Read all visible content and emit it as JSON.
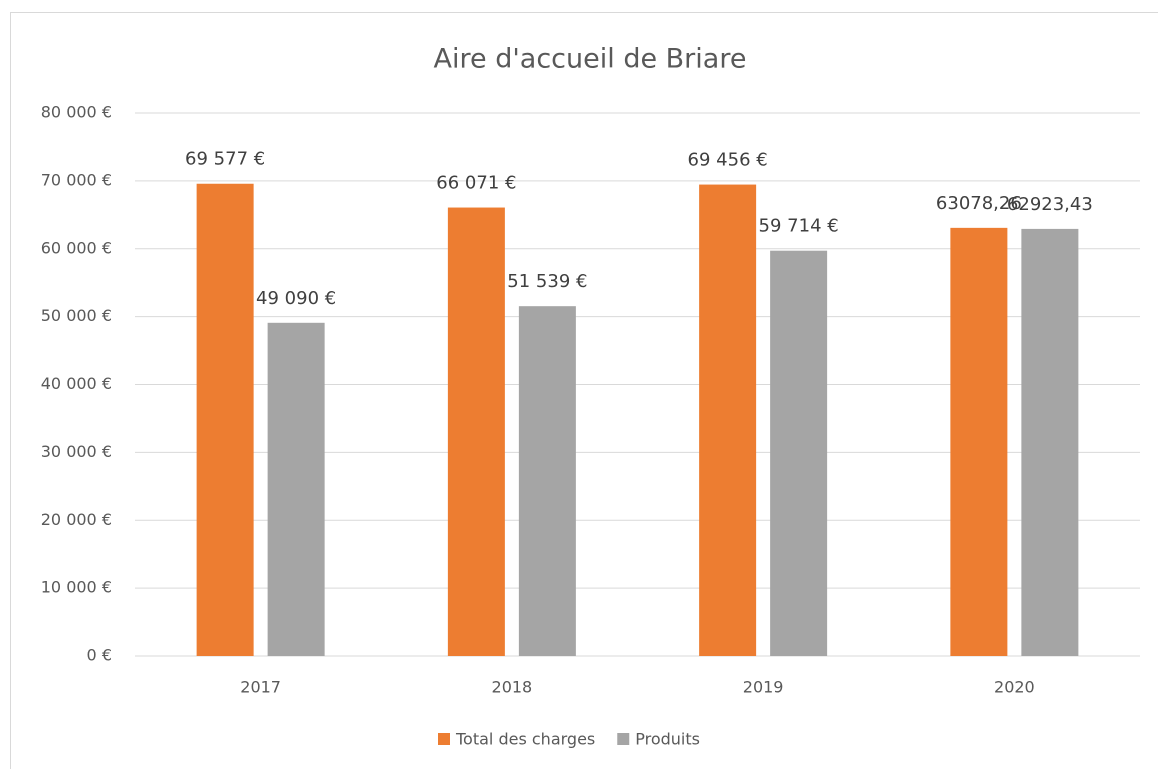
{
  "chart_data": {
    "type": "bar",
    "title": "Aire d'accueil de Briare",
    "categories": [
      "2017",
      "2018",
      "2019",
      "2020"
    ],
    "series": [
      {
        "name": "Total des charges",
        "color": "#ed7d31",
        "values": [
          69577,
          66071,
          69456,
          63078.26
        ],
        "value_labels": [
          "69 577 €",
          "66 071 €",
          "69 456 €",
          "63078,26"
        ]
      },
      {
        "name": "Produits",
        "color": "#a5a5a5",
        "values": [
          49090,
          51539,
          59714,
          62923.43
        ],
        "value_labels": [
          "49 090 €",
          "51 539 €",
          "59 714 €",
          "62923,43"
        ]
      }
    ],
    "ylim": [
      0,
      80000
    ],
    "yticks": [
      {
        "value": 0,
        "label": "0 €"
      },
      {
        "value": 10000,
        "label": "10 000 €"
      },
      {
        "value": 20000,
        "label": "20 000 €"
      },
      {
        "value": 30000,
        "label": "30 000 €"
      },
      {
        "value": 40000,
        "label": "40 000 €"
      },
      {
        "value": 50000,
        "label": "50 000 €"
      },
      {
        "value": 60000,
        "label": "60 000 €"
      },
      {
        "value": 70000,
        "label": "70 000 €"
      },
      {
        "value": 80000,
        "label": "80 000 €"
      }
    ],
    "grid": true,
    "legend": "bottom"
  }
}
